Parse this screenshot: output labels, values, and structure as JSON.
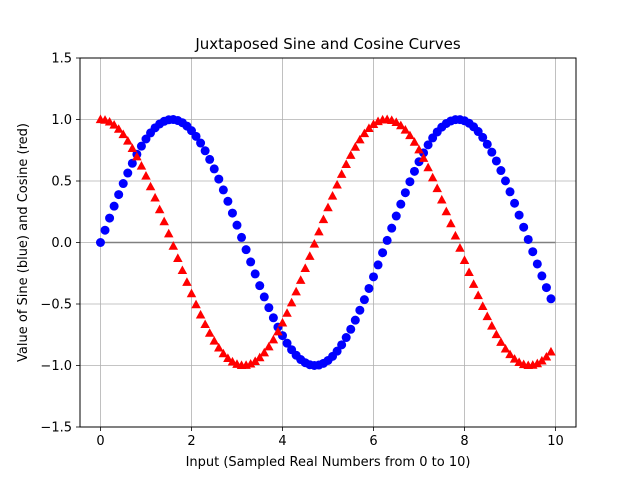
{
  "chart_data": {
    "type": "scatter",
    "title": "Juxtaposed Sine and Cosine Curves",
    "xlabel": "Input (Sampled Real Numbers from 0 to 10)",
    "ylabel": "Value of Sine (blue) and Cosine (red)",
    "xlim": [
      -0.45,
      10.45
    ],
    "ylim": [
      -1.5,
      1.5
    ],
    "xticks": [
      0,
      2,
      4,
      6,
      8,
      10
    ],
    "xtick_labels": [
      "0",
      "2",
      "4",
      "6",
      "8",
      "10"
    ],
    "yticks": [
      -1.5,
      -1.0,
      -0.5,
      0.0,
      0.5,
      1.0,
      1.5
    ],
    "ytick_labels": [
      "−1.5",
      "−1.0",
      "−0.5",
      "0.0",
      "0.5",
      "1.0",
      "1.5"
    ],
    "grid": true,
    "x": {
      "start": 0,
      "stop": 9.9,
      "step": 0.1
    },
    "series": [
      {
        "function": "sin",
        "color": "#0000ff",
        "marker": "circle"
      },
      {
        "function": "cos",
        "color": "#ff0000",
        "marker": "triangle"
      }
    ],
    "reference_line": {
      "y": 0,
      "from_x": 0,
      "to_x": 10,
      "color": "#808080"
    }
  }
}
